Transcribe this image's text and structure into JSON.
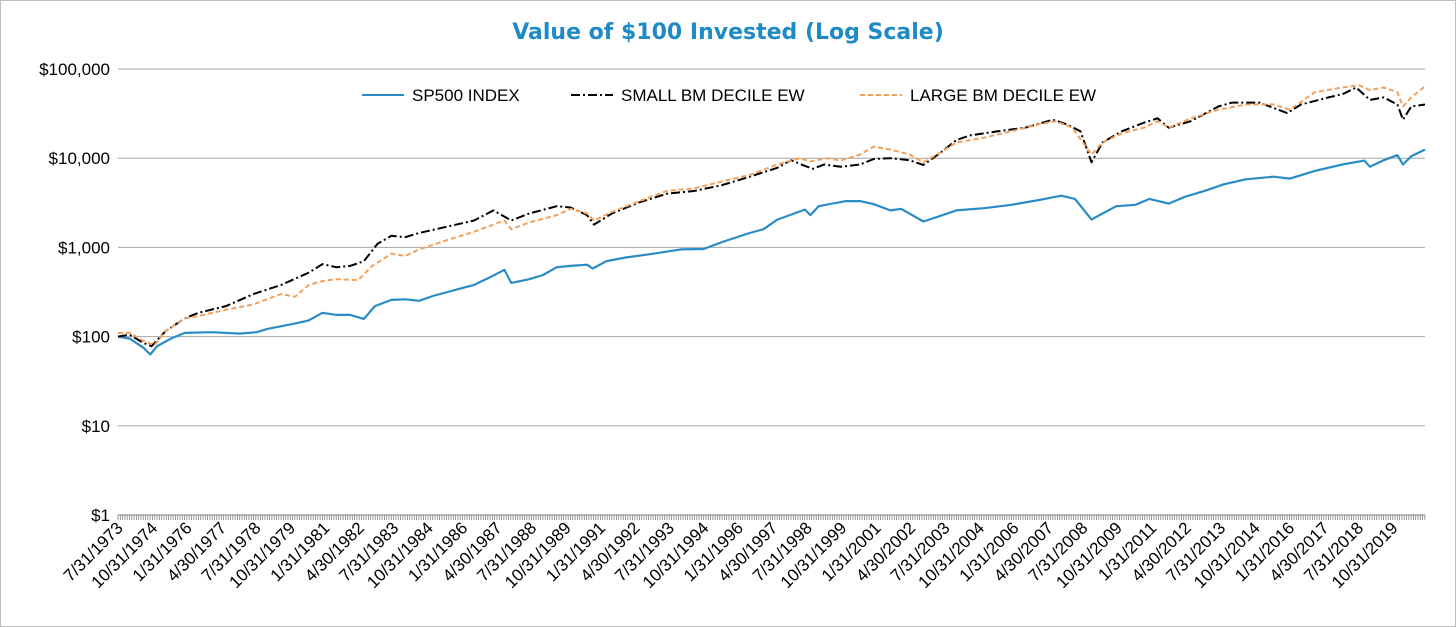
{
  "chart_data": {
    "type": "line",
    "title": "Value of $100 Invested (Log Scale)",
    "title_color": "#1f8bc6",
    "y_scale": "log",
    "ylim": [
      1,
      100000
    ],
    "y_ticks": [
      1,
      10,
      100,
      1000,
      10000,
      100000
    ],
    "y_tick_labels": [
      "$1",
      "$10",
      "$100",
      "$1,000",
      "$10,000",
      "$100,000"
    ],
    "x_tick_labels": [
      "7/31/1973",
      "10/31/1974",
      "1/31/1976",
      "4/30/1977",
      "7/31/1978",
      "10/31/1979",
      "1/31/1981",
      "4/30/1982",
      "7/31/1983",
      "10/31/1984",
      "1/31/1986",
      "4/30/1987",
      "7/31/1988",
      "10/31/1989",
      "1/31/1991",
      "4/30/1992",
      "7/31/1993",
      "10/31/1994",
      "1/31/1996",
      "4/30/1997",
      "7/31/1998",
      "10/31/1999",
      "1/31/2001",
      "4/30/2002",
      "7/31/2003",
      "10/31/2004",
      "1/31/2006",
      "4/30/2007",
      "7/31/2008",
      "10/31/2009",
      "1/31/2011",
      "4/30/2012",
      "7/31/2013",
      "10/31/2014",
      "1/31/2016",
      "4/30/2017",
      "7/31/2018",
      "10/31/2019"
    ],
    "x_tick_years": [
      1973.58,
      1974.83,
      1976.08,
      1977.33,
      1978.58,
      1979.83,
      1981.08,
      1982.33,
      1983.58,
      1984.83,
      1986.08,
      1987.33,
      1988.58,
      1989.83,
      1991.08,
      1992.33,
      1993.58,
      1994.83,
      1996.08,
      1997.33,
      1998.58,
      1999.83,
      2001.08,
      2002.33,
      2003.58,
      2004.83,
      2006.08,
      2007.33,
      2008.58,
      2009.83,
      2011.08,
      2012.33,
      2013.58,
      2014.83,
      2016.08,
      2017.33,
      2018.58,
      2019.83
    ],
    "xlim": [
      1973.58,
      2021.0
    ],
    "grid": true,
    "legend_position": "top-center",
    "series": [
      {
        "name": "SP500 INDEX",
        "color": "#2a8cc4",
        "dash": "solid",
        "points": [
          [
            1973.58,
            100
          ],
          [
            1974.0,
            95
          ],
          [
            1974.5,
            75
          ],
          [
            1974.75,
            63
          ],
          [
            1975.0,
            78
          ],
          [
            1975.5,
            95
          ],
          [
            1976.0,
            110
          ],
          [
            1977.0,
            112
          ],
          [
            1978.0,
            108
          ],
          [
            1978.6,
            112
          ],
          [
            1979.0,
            122
          ],
          [
            1980.0,
            140
          ],
          [
            1980.5,
            152
          ],
          [
            1981.0,
            185
          ],
          [
            1981.5,
            175
          ],
          [
            1982.0,
            175
          ],
          [
            1982.5,
            158
          ],
          [
            1982.9,
            220
          ],
          [
            1983.5,
            258
          ],
          [
            1984.0,
            262
          ],
          [
            1984.5,
            252
          ],
          [
            1985.0,
            285
          ],
          [
            1986.0,
            345
          ],
          [
            1986.5,
            380
          ],
          [
            1987.0,
            450
          ],
          [
            1987.6,
            560
          ],
          [
            1987.85,
            400
          ],
          [
            1988.5,
            440
          ],
          [
            1989.0,
            490
          ],
          [
            1989.5,
            600
          ],
          [
            1990.0,
            620
          ],
          [
            1990.6,
            640
          ],
          [
            1990.8,
            580
          ],
          [
            1991.3,
            700
          ],
          [
            1992.0,
            770
          ],
          [
            1993.0,
            850
          ],
          [
            1994.0,
            950
          ],
          [
            1994.83,
            960
          ],
          [
            1995.5,
            1150
          ],
          [
            1996.5,
            1450
          ],
          [
            1997.0,
            1600
          ],
          [
            1997.5,
            2050
          ],
          [
            1998.5,
            2650
          ],
          [
            1998.7,
            2300
          ],
          [
            1999.0,
            2900
          ],
          [
            1999.5,
            3100
          ],
          [
            2000.0,
            3300
          ],
          [
            2000.5,
            3300
          ],
          [
            2001.0,
            3050
          ],
          [
            2001.6,
            2600
          ],
          [
            2002.0,
            2700
          ],
          [
            2002.8,
            1950
          ],
          [
            2003.5,
            2300
          ],
          [
            2004.0,
            2600
          ],
          [
            2005.0,
            2750
          ],
          [
            2006.0,
            3000
          ],
          [
            2007.0,
            3400
          ],
          [
            2007.8,
            3800
          ],
          [
            2008.3,
            3500
          ],
          [
            2008.9,
            2050
          ],
          [
            2009.3,
            2400
          ],
          [
            2009.8,
            2900
          ],
          [
            2010.5,
            3000
          ],
          [
            2011.0,
            3500
          ],
          [
            2011.7,
            3100
          ],
          [
            2012.3,
            3700
          ],
          [
            2013.0,
            4300
          ],
          [
            2013.7,
            5100
          ],
          [
            2014.5,
            5800
          ],
          [
            2015.5,
            6200
          ],
          [
            2016.1,
            5900
          ],
          [
            2017.0,
            7200
          ],
          [
            2018.0,
            8500
          ],
          [
            2018.8,
            9400
          ],
          [
            2019.0,
            8000
          ],
          [
            2019.5,
            9500
          ],
          [
            2020.0,
            10800
          ],
          [
            2020.2,
            8500
          ],
          [
            2020.5,
            10500
          ],
          [
            2021.0,
            12500
          ]
        ]
      },
      {
        "name": "SMALL BM DECILE EW",
        "color": "#000000",
        "dash": "dashdot",
        "points": [
          [
            1973.58,
            100
          ],
          [
            1974.0,
            105
          ],
          [
            1974.5,
            85
          ],
          [
            1974.8,
            78
          ],
          [
            1975.3,
            115
          ],
          [
            1976.0,
            160
          ],
          [
            1976.5,
            185
          ],
          [
            1977.5,
            220
          ],
          [
            1978.5,
            300
          ],
          [
            1979.5,
            380
          ],
          [
            1980.5,
            520
          ],
          [
            1981.0,
            650
          ],
          [
            1981.5,
            600
          ],
          [
            1982.0,
            620
          ],
          [
            1982.5,
            700
          ],
          [
            1983.0,
            1100
          ],
          [
            1983.5,
            1350
          ],
          [
            1984.0,
            1300
          ],
          [
            1984.5,
            1450
          ],
          [
            1985.5,
            1700
          ],
          [
            1986.5,
            2000
          ],
          [
            1987.2,
            2600
          ],
          [
            1987.85,
            2000
          ],
          [
            1988.5,
            2400
          ],
          [
            1989.5,
            2900
          ],
          [
            1990.0,
            2800
          ],
          [
            1990.6,
            2300
          ],
          [
            1990.85,
            1800
          ],
          [
            1991.5,
            2400
          ],
          [
            1992.5,
            3200
          ],
          [
            1993.5,
            4000
          ],
          [
            1994.5,
            4300
          ],
          [
            1995.5,
            5000
          ],
          [
            1996.5,
            6200
          ],
          [
            1997.5,
            7800
          ],
          [
            1998.0,
            9500
          ],
          [
            1998.5,
            8200
          ],
          [
            1998.8,
            7600
          ],
          [
            1999.2,
            8500
          ],
          [
            1999.8,
            8000
          ],
          [
            2000.5,
            8500
          ],
          [
            2001.0,
            9800
          ],
          [
            2001.6,
            10000
          ],
          [
            2002.3,
            9500
          ],
          [
            2002.8,
            8400
          ],
          [
            2003.5,
            12000
          ],
          [
            2004.0,
            16000
          ],
          [
            2004.5,
            18000
          ],
          [
            2005.5,
            20000
          ],
          [
            2006.5,
            22000
          ],
          [
            2007.5,
            27000
          ],
          [
            2008.0,
            24000
          ],
          [
            2008.5,
            20000
          ],
          [
            2008.9,
            9000
          ],
          [
            2009.3,
            15000
          ],
          [
            2010.0,
            20000
          ],
          [
            2010.8,
            25000
          ],
          [
            2011.3,
            28000
          ],
          [
            2011.7,
            22000
          ],
          [
            2012.5,
            26000
          ],
          [
            2013.5,
            38000
          ],
          [
            2014.0,
            42000
          ],
          [
            2015.0,
            42000
          ],
          [
            2016.0,
            32000
          ],
          [
            2016.5,
            40000
          ],
          [
            2017.5,
            48000
          ],
          [
            2018.0,
            52000
          ],
          [
            2018.5,
            62000
          ],
          [
            2019.0,
            45000
          ],
          [
            2019.5,
            48000
          ],
          [
            2020.0,
            40000
          ],
          [
            2020.2,
            27000
          ],
          [
            2020.5,
            38000
          ],
          [
            2021.0,
            40000
          ]
        ]
      },
      {
        "name": "LARGE BM DECILE EW",
        "color": "#f4a05a",
        "dash": "dashed",
        "points": [
          [
            1973.58,
            110
          ],
          [
            1974.0,
            110
          ],
          [
            1974.5,
            90
          ],
          [
            1974.9,
            80
          ],
          [
            1975.3,
            115
          ],
          [
            1976.0,
            160
          ],
          [
            1976.5,
            170
          ],
          [
            1977.5,
            200
          ],
          [
            1978.5,
            230
          ],
          [
            1979.5,
            300
          ],
          [
            1980.0,
            280
          ],
          [
            1980.5,
            380
          ],
          [
            1981.0,
            420
          ],
          [
            1981.5,
            440
          ],
          [
            1982.3,
            430
          ],
          [
            1982.8,
            620
          ],
          [
            1983.5,
            850
          ],
          [
            1984.0,
            800
          ],
          [
            1984.5,
            950
          ],
          [
            1985.5,
            1200
          ],
          [
            1986.5,
            1500
          ],
          [
            1987.6,
            2000
          ],
          [
            1987.85,
            1600
          ],
          [
            1988.5,
            1900
          ],
          [
            1989.5,
            2300
          ],
          [
            1990.0,
            2700
          ],
          [
            1990.6,
            2400
          ],
          [
            1990.85,
            2000
          ],
          [
            1991.5,
            2500
          ],
          [
            1992.5,
            3300
          ],
          [
            1993.5,
            4300
          ],
          [
            1994.5,
            4600
          ],
          [
            1995.5,
            5500
          ],
          [
            1996.5,
            6500
          ],
          [
            1997.5,
            8500
          ],
          [
            1998.3,
            10000
          ],
          [
            1998.7,
            9200
          ],
          [
            1999.3,
            10000
          ],
          [
            1999.8,
            9400
          ],
          [
            2000.5,
            11000
          ],
          [
            2001.0,
            13500
          ],
          [
            2001.6,
            12500
          ],
          [
            2002.3,
            11000
          ],
          [
            2002.8,
            9000
          ],
          [
            2003.5,
            12000
          ],
          [
            2004.0,
            15000
          ],
          [
            2005.0,
            17000
          ],
          [
            2006.0,
            20000
          ],
          [
            2007.0,
            24000
          ],
          [
            2007.6,
            26000
          ],
          [
            2008.2,
            22000
          ],
          [
            2008.9,
            11000
          ],
          [
            2009.3,
            15000
          ],
          [
            2010.0,
            19000
          ],
          [
            2010.8,
            22000
          ],
          [
            2011.3,
            26000
          ],
          [
            2011.7,
            22000
          ],
          [
            2012.5,
            28000
          ],
          [
            2013.5,
            35000
          ],
          [
            2014.5,
            40000
          ],
          [
            2015.5,
            40000
          ],
          [
            2016.1,
            35000
          ],
          [
            2017.0,
            55000
          ],
          [
            2018.0,
            62000
          ],
          [
            2018.6,
            66000
          ],
          [
            2019.0,
            58000
          ],
          [
            2019.5,
            62000
          ],
          [
            2020.0,
            55000
          ],
          [
            2020.2,
            38000
          ],
          [
            2020.5,
            48000
          ],
          [
            2021.0,
            64000
          ]
        ]
      }
    ]
  }
}
